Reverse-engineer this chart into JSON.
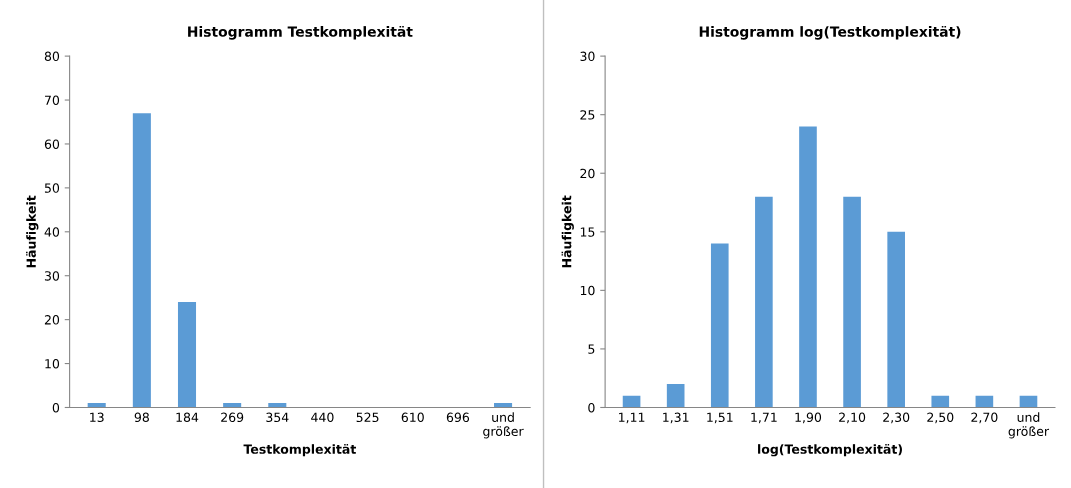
{
  "chart_data": [
    {
      "type": "bar",
      "title": "Histogramm Testkomplexität",
      "xlabel": "Testkomplexität",
      "ylabel": "Häufigkeit",
      "categories": [
        "13",
        "98",
        "184",
        "269",
        "354",
        "440",
        "525",
        "610",
        "696",
        "und\ngrößer"
      ],
      "values": [
        1,
        67,
        24,
        1,
        1,
        0,
        0,
        0,
        0,
        1
      ],
      "color": "#5b9bd5",
      "ylim": [
        0,
        80
      ],
      "yticks": [
        0,
        10,
        20,
        30,
        40,
        50,
        60,
        70,
        80
      ],
      "grid": false,
      "legend": false
    },
    {
      "type": "bar",
      "title": "Histogramm log(Testkomplexität)",
      "xlabel": "log(Testkomplexität)",
      "ylabel": "Häufigkeit",
      "categories": [
        "1,11",
        "1,31",
        "1,51",
        "1,71",
        "1,90",
        "2,10",
        "2,30",
        "2,50",
        "2,70",
        "und\ngrößer"
      ],
      "values": [
        1,
        2,
        14,
        18,
        24,
        18,
        15,
        1,
        1,
        1
      ],
      "color": "#5b9bd5",
      "ylim": [
        0,
        30
      ],
      "yticks": [
        0,
        5,
        10,
        15,
        20,
        25,
        30
      ],
      "grid": false,
      "legend": false
    }
  ]
}
